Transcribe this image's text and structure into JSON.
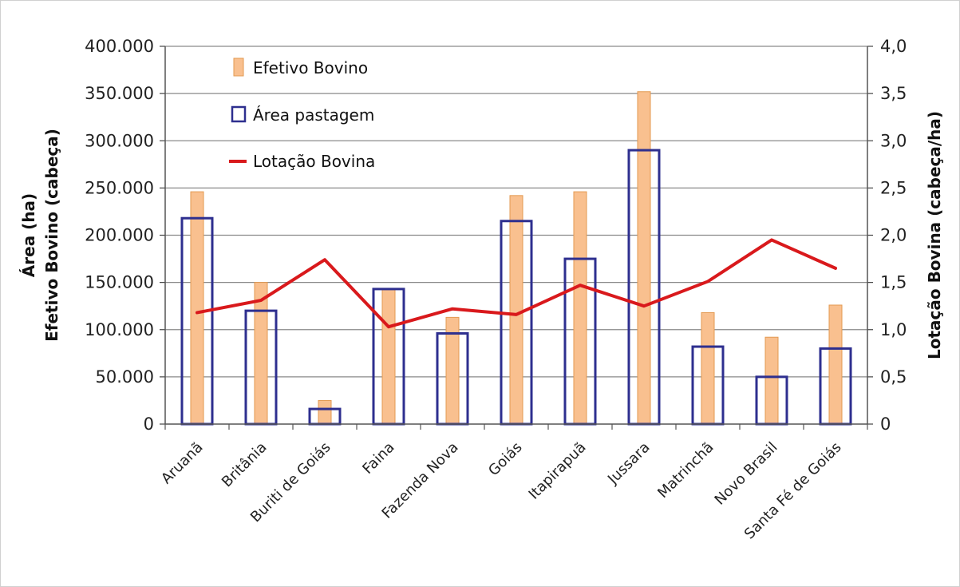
{
  "chart_data": {
    "type": "bar",
    "categories": [
      "Aruanã",
      "Britânia",
      "Buriti de Goiás",
      "Faina",
      "Fazenda Nova",
      "Goiás",
      "Itapirapuã",
      "Jussara",
      "Matrinchã",
      "Novo Brasil",
      "Santa Fé de Goiás"
    ],
    "series": [
      {
        "name": "Efetivo Bovino",
        "kind": "bar",
        "axis": "left",
        "color": "#f9c08f",
        "edge_color": "#e39a52",
        "values": [
          246000,
          150000,
          25000,
          143000,
          113000,
          242000,
          246000,
          352000,
          118000,
          92000,
          126000
        ]
      },
      {
        "name": "Área pastagem",
        "kind": "bar-outline",
        "axis": "left",
        "color": "#2e2f8f",
        "values": [
          218000,
          120000,
          16000,
          143000,
          96000,
          215000,
          175000,
          290000,
          82000,
          50000,
          80000
        ]
      },
      {
        "name": "Lotação Bovina",
        "kind": "line",
        "axis": "right",
        "color": "#d9191c",
        "values": [
          1.18,
          1.31,
          1.74,
          1.03,
          1.22,
          1.16,
          1.47,
          1.25,
          1.51,
          1.95,
          1.65
        ]
      }
    ],
    "ylabel_lines": [
      "Área (ha)",
      "Efetivo Bovino (cabeça)"
    ],
    "y2label": "Lotação Bovina (cabeça/ha)",
    "ylim": [
      0,
      400000
    ],
    "y2lim": [
      0,
      4.0
    ],
    "yticks": [
      "0",
      "50.000",
      "100.000",
      "150.000",
      "200.000",
      "250.000",
      "300.000",
      "350.000",
      "400.000"
    ],
    "y2ticks": [
      "0",
      "0,5",
      "1,0",
      "1,5",
      "2,0",
      "2,5",
      "3,0",
      "3,5",
      "4,0"
    ],
    "grid": true,
    "legend_position": "top-left"
  }
}
